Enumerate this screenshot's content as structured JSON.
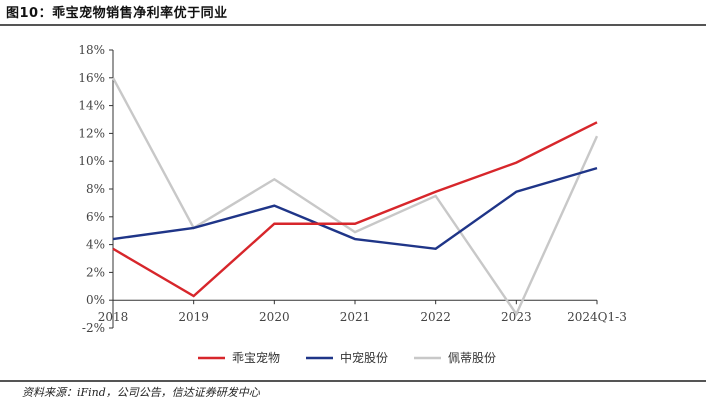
{
  "header": {
    "title": "图10：乖宝宠物销售净利率优于同业"
  },
  "footer": {
    "source": "资料来源：iFind，公司公告，信达证券研发中心"
  },
  "chart_data": {
    "type": "line",
    "categories": [
      "2018",
      "2019",
      "2020",
      "2021",
      "2022",
      "2023",
      "2024Q1-3"
    ],
    "ylim": [
      -2,
      18
    ],
    "yticks": [
      -2,
      0,
      2,
      4,
      6,
      8,
      10,
      12,
      14,
      16,
      18
    ],
    "ytick_suffix": "%",
    "grid": false,
    "legend": "bottom",
    "series": [
      {
        "name": "乖宝宠物",
        "color": "#d7262b",
        "values": [
          3.7,
          0.3,
          5.5,
          5.5,
          7.8,
          9.9,
          12.8
        ]
      },
      {
        "name": "中宠股份",
        "color": "#1f3588",
        "values": [
          4.4,
          5.2,
          6.8,
          4.4,
          3.7,
          7.8,
          9.5
        ]
      },
      {
        "name": "佩蒂股份",
        "color": "#c8c8c8",
        "values": [
          16.0,
          5.2,
          8.7,
          4.9,
          7.5,
          -1.0,
          11.8
        ]
      }
    ]
  }
}
